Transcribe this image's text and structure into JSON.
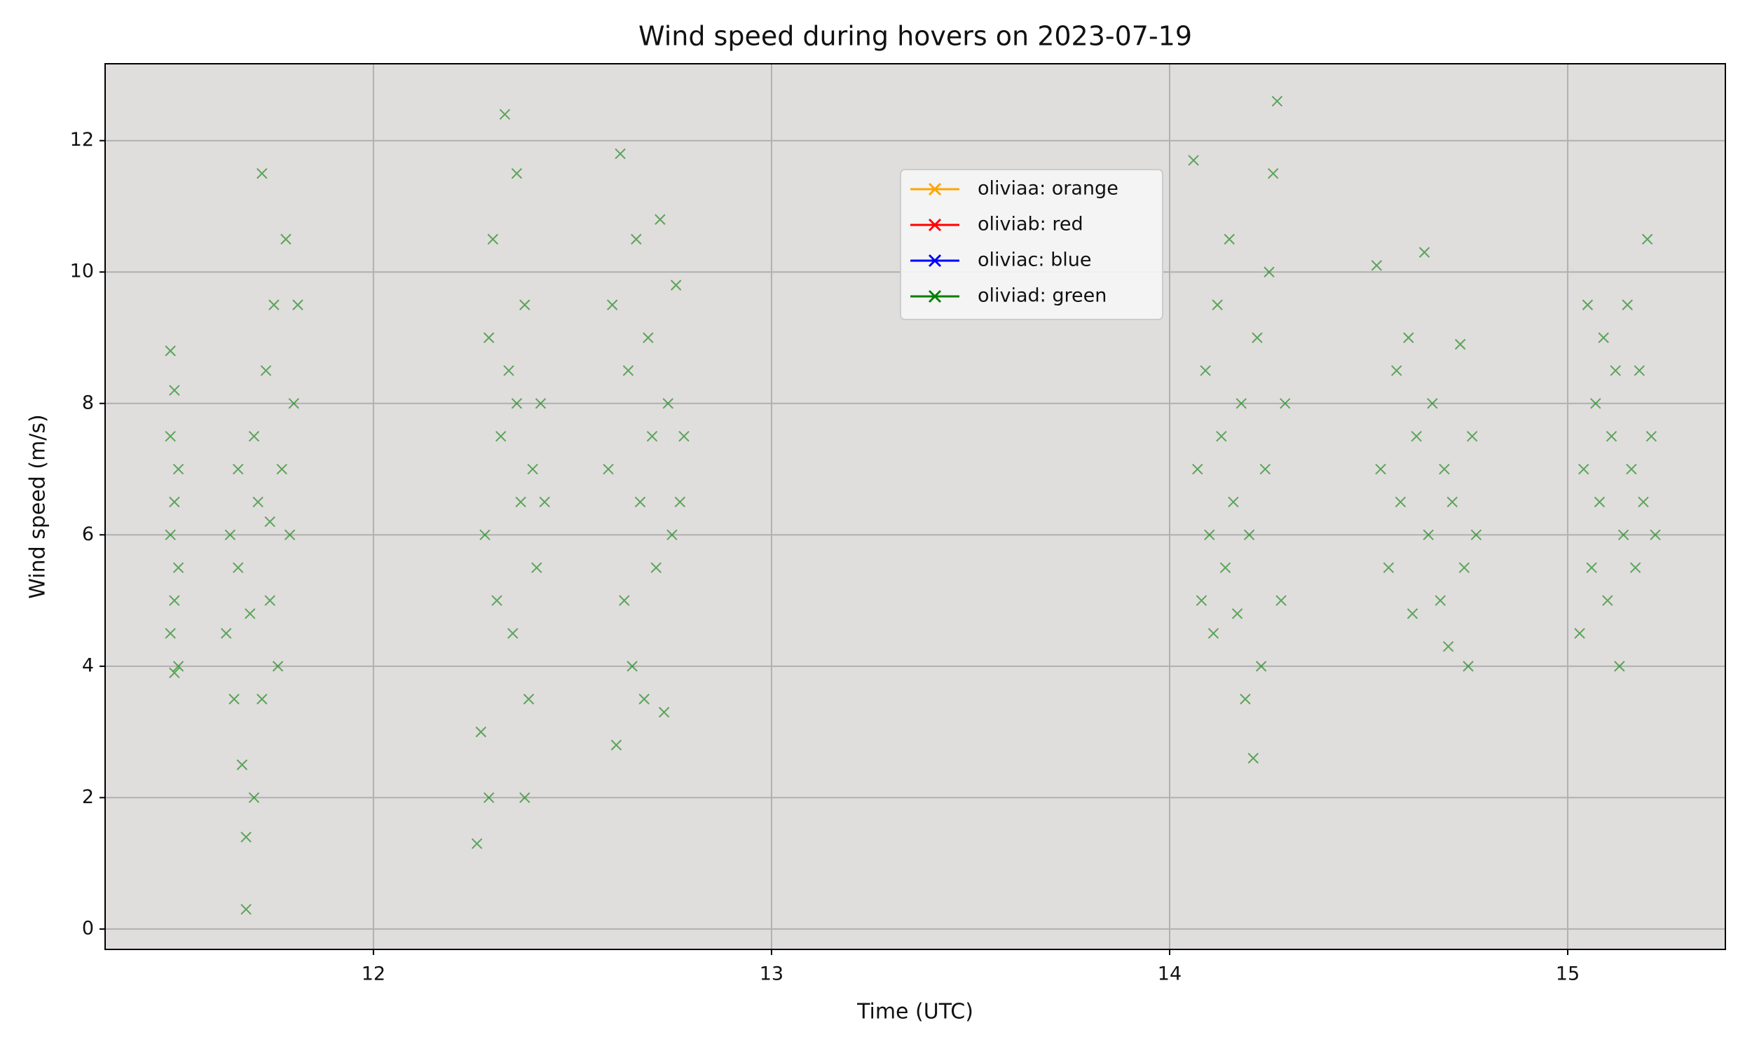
{
  "chart_data": {
    "type": "scatter",
    "title": "Wind speed during hovers on 2023-07-19",
    "x_label": "Time (UTC)",
    "y_label": "Wind speed (m/s)",
    "xlim": [
      11.326,
      15.396
    ],
    "xticks": [
      12,
      13,
      14,
      15
    ],
    "ylim": [
      -0.31,
      13.17
    ],
    "yticks": [
      0,
      2,
      4,
      6,
      8,
      10,
      12
    ],
    "grid": true,
    "legend": "upper center",
    "series": [
      {
        "name": "oliviaa: orange",
        "color": "#ffa500",
        "x": [],
        "values": []
      },
      {
        "name": "oliviab: red",
        "color": "#ff0000",
        "x": [],
        "values": []
      },
      {
        "name": "oliviac: blue",
        "color": "#0000ff",
        "x": [],
        "values": []
      },
      {
        "name": "oliviad: green",
        "color": "#008000",
        "x": [
          11.49,
          11.5,
          11.49,
          11.51,
          11.5,
          11.49,
          11.51,
          11.5,
          11.49,
          11.51,
          11.5,
          11.63,
          11.64,
          11.65,
          11.66,
          11.67,
          11.68,
          11.68,
          11.69,
          11.7,
          11.7,
          11.71,
          11.72,
          11.72,
          11.73,
          11.74,
          11.75,
          11.76,
          11.77,
          11.78,
          11.79,
          11.8,
          11.81,
          11.66,
          11.74,
          12.26,
          12.27,
          12.28,
          12.29,
          12.3,
          12.31,
          12.32,
          12.33,
          12.34,
          12.35,
          12.36,
          12.37,
          12.38,
          12.38,
          12.39,
          12.4,
          12.41,
          12.42,
          12.43,
          12.29,
          12.36,
          12.59,
          12.6,
          12.61,
          12.62,
          12.63,
          12.64,
          12.65,
          12.66,
          12.67,
          12.68,
          12.69,
          12.7,
          12.71,
          12.72,
          12.73,
          12.74,
          12.75,
          12.76,
          12.77,
          12.78,
          14.06,
          14.07,
          14.08,
          14.09,
          14.1,
          14.11,
          14.12,
          14.13,
          14.14,
          14.15,
          14.16,
          14.17,
          14.18,
          14.19,
          14.2,
          14.21,
          14.22,
          14.23,
          14.24,
          14.25,
          14.26,
          14.27,
          14.28,
          14.29,
          14.52,
          14.53,
          14.55,
          14.57,
          14.58,
          14.6,
          14.61,
          14.62,
          14.64,
          14.65,
          14.66,
          14.68,
          14.69,
          14.7,
          14.71,
          14.73,
          14.74,
          14.75,
          14.76,
          14.77,
          15.03,
          15.04,
          15.05,
          15.06,
          15.07,
          15.08,
          15.09,
          15.1,
          15.11,
          15.12,
          15.13,
          15.14,
          15.15,
          15.16,
          15.17,
          15.18,
          15.19,
          15.2,
          15.21,
          15.22
        ],
        "values": [
          8.8,
          8.2,
          7.5,
          7.0,
          6.5,
          6.0,
          5.5,
          5.0,
          4.5,
          4.0,
          3.9,
          4.5,
          6.0,
          3.5,
          5.5,
          2.5,
          1.4,
          0.3,
          4.8,
          7.5,
          2.0,
          6.5,
          11.5,
          3.5,
          8.5,
          5.0,
          9.5,
          4.0,
          7.0,
          10.5,
          6.0,
          8.0,
          9.5,
          7.0,
          6.2,
          1.3,
          3.0,
          6.0,
          9.0,
          10.5,
          5.0,
          7.5,
          12.4,
          8.5,
          4.5,
          11.5,
          6.5,
          9.5,
          2.0,
          3.5,
          7.0,
          5.5,
          8.0,
          6.5,
          2.0,
          8.0,
          7.0,
          9.5,
          2.8,
          11.8,
          5.0,
          8.5,
          4.0,
          10.5,
          6.5,
          3.5,
          9.0,
          7.5,
          5.5,
          10.8,
          3.3,
          8.0,
          6.0,
          9.8,
          6.5,
          7.5,
          11.7,
          7.0,
          5.0,
          8.5,
          6.0,
          4.5,
          9.5,
          7.5,
          5.5,
          10.5,
          6.5,
          4.8,
          8.0,
          3.5,
          6.0,
          2.6,
          9.0,
          4.0,
          7.0,
          10.0,
          11.5,
          12.6,
          5.0,
          8.0,
          10.1,
          7.0,
          5.5,
          8.5,
          6.5,
          9.0,
          4.8,
          7.5,
          10.3,
          6.0,
          8.0,
          5.0,
          7.0,
          4.3,
          6.5,
          8.9,
          5.5,
          4.0,
          7.5,
          6.0,
          4.5,
          7.0,
          9.5,
          5.5,
          8.0,
          6.5,
          9.0,
          5.0,
          7.5,
          8.5,
          4.0,
          6.0,
          9.5,
          7.0,
          5.5,
          8.5,
          6.5,
          10.5,
          7.5,
          6.0
        ]
      }
    ]
  }
}
